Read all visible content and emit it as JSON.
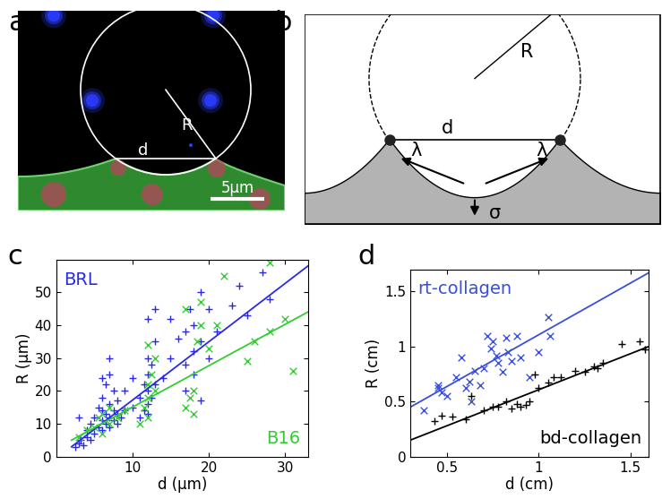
{
  "panel_labels": [
    "a",
    "b",
    "c",
    "d"
  ],
  "image_panel": {
    "texts": {
      "radius": "R",
      "chord": "d",
      "scale_bar": "5µm"
    }
  },
  "diagram_panel": {
    "texts": {
      "radius": "R",
      "chord": "d",
      "tension_left": "λ",
      "tension_right": "λ",
      "stress": "σ"
    }
  },
  "chart_data": [
    {
      "type": "scatter",
      "xlabel": "d (µm)",
      "ylabel": "R (µm)",
      "xlim": [
        0,
        33
      ],
      "ylim": [
        0,
        60
      ],
      "xticks": [
        10,
        20,
        30
      ],
      "yticks": [
        0,
        10,
        20,
        30,
        40,
        50
      ],
      "series": [
        {
          "type": "scatter",
          "name": "BRL",
          "color": "#2a2ae6",
          "marker": "+",
          "x": [
            2.5,
            3,
            3.2,
            3.5,
            4,
            4,
            4.5,
            4.5,
            5,
            5,
            5.5,
            5.5,
            6,
            6,
            6,
            6,
            6.5,
            6.5,
            6.5,
            7,
            7,
            7,
            7,
            7.5,
            7.5,
            7.5,
            8,
            8,
            8,
            8.5,
            9,
            9,
            10,
            11,
            11,
            11.5,
            11.5,
            12,
            12,
            12,
            12,
            12,
            12.5,
            12.5,
            13,
            13,
            13,
            12,
            14,
            15,
            16,
            17,
            17,
            17,
            17.5,
            18,
            18,
            18,
            19,
            19,
            20,
            20,
            21,
            23,
            24,
            25,
            27,
            28,
            19,
            6,
            3,
            7,
            10,
            15
          ],
          "values": [
            3,
            4,
            5,
            3.5,
            6,
            8,
            5,
            10,
            7,
            12,
            9,
            15,
            8,
            11,
            14,
            18,
            10,
            13,
            22,
            9,
            12,
            16,
            25,
            11,
            14,
            20,
            10,
            13,
            17,
            12,
            14,
            20,
            15,
            12,
            18,
            14,
            22,
            13,
            16,
            20,
            25,
            30,
            18,
            28,
            22,
            35,
            45,
            42,
            24,
            30,
            36,
            20,
            28,
            38,
            45,
            25,
            32,
            40,
            35,
            50,
            30,
            45,
            38,
            46,
            52,
            43,
            56,
            48,
            17,
            24,
            12,
            30,
            24,
            42
          ]
        },
        {
          "type": "scatter",
          "name": "B16",
          "color": "#33cc33",
          "marker": "x",
          "x": [
            3,
            4,
            5,
            5.5,
            6,
            6,
            7,
            7,
            8,
            9,
            11,
            11.5,
            12,
            12,
            12,
            12.5,
            13,
            13,
            12,
            17,
            17.5,
            18,
            18,
            18.5,
            19,
            20,
            19,
            25,
            26,
            28,
            30,
            31,
            28,
            21,
            22,
            17
          ],
          "values": [
            6,
            8,
            9,
            12,
            7,
            13,
            10,
            15,
            12,
            14,
            10,
            15,
            12,
            18,
            22,
            25,
            20,
            30,
            34,
            15,
            18,
            13,
            20,
            35,
            40,
            33,
            47,
            29,
            35,
            38,
            42,
            26,
            59,
            40,
            55,
            45
          ]
        },
        {
          "type": "line",
          "color": "#2a2ae6",
          "x": [
            2,
            33
          ],
          "values": [
            3,
            58
          ]
        },
        {
          "type": "line",
          "color": "#33cc33",
          "x": [
            2,
            33
          ],
          "values": [
            5,
            44
          ]
        }
      ]
    },
    {
      "type": "scatter",
      "xlabel": "d (cm)",
      "ylabel": "R (cm)",
      "xlim": [
        0.3,
        1.6
      ],
      "ylim": [
        0,
        1.7
      ],
      "xticks": [
        0.5,
        1,
        1.5
      ],
      "yticks": [
        0,
        0.5,
        1,
        1.5
      ],
      "series": [
        {
          "type": "scatter",
          "name": "rt-collagen",
          "color": "#3a4fd8",
          "marker": "x",
          "x": [
            0.37,
            0.45,
            0.45,
            0.47,
            0.5,
            0.55,
            0.58,
            0.6,
            0.62,
            0.65,
            0.68,
            0.7,
            0.72,
            0.74,
            0.75,
            0.77,
            0.78,
            0.8,
            0.82,
            0.83,
            0.85,
            0.88,
            0.9,
            1.05,
            1.06,
            0.95,
            0.63,
            1.0
          ],
          "values": [
            0.42,
            0.65,
            0.62,
            0.58,
            0.55,
            0.72,
            0.9,
            0.62,
            0.68,
            0.78,
            0.65,
            0.8,
            1.1,
            0.98,
            1.05,
            0.92,
            0.85,
            0.77,
            1.08,
            0.95,
            0.87,
            1.1,
            0.9,
            1.27,
            1.1,
            0.72,
            0.5,
            0.95
          ]
        },
        {
          "type": "scatter",
          "name": "bd-collagen",
          "color": "#000000",
          "marker": "+",
          "x": [
            0.43,
            0.47,
            0.53,
            0.6,
            0.63,
            0.7,
            0.75,
            0.78,
            0.82,
            0.85,
            0.88,
            0.9,
            0.93,
            0.95,
            0.98,
            1.0,
            1.05,
            1.08,
            1.12,
            1.2,
            1.25,
            1.3,
            1.32,
            1.35,
            1.45,
            1.55,
            1.58
          ],
          "values": [
            0.32,
            0.37,
            0.36,
            0.34,
            0.55,
            0.42,
            0.45,
            0.45,
            0.5,
            0.44,
            0.48,
            0.45,
            0.47,
            0.5,
            0.75,
            0.62,
            0.67,
            0.72,
            0.72,
            0.78,
            0.77,
            0.82,
            0.8,
            0.85,
            1.02,
            1.05,
            0.97
          ]
        },
        {
          "type": "line",
          "color": "#3a4fd8",
          "x": [
            0.3,
            1.6
          ],
          "values": [
            0.45,
            1.67
          ]
        },
        {
          "type": "line",
          "color": "#000000",
          "x": [
            0.3,
            1.6
          ],
          "values": [
            0.15,
            1.0
          ]
        }
      ]
    }
  ]
}
